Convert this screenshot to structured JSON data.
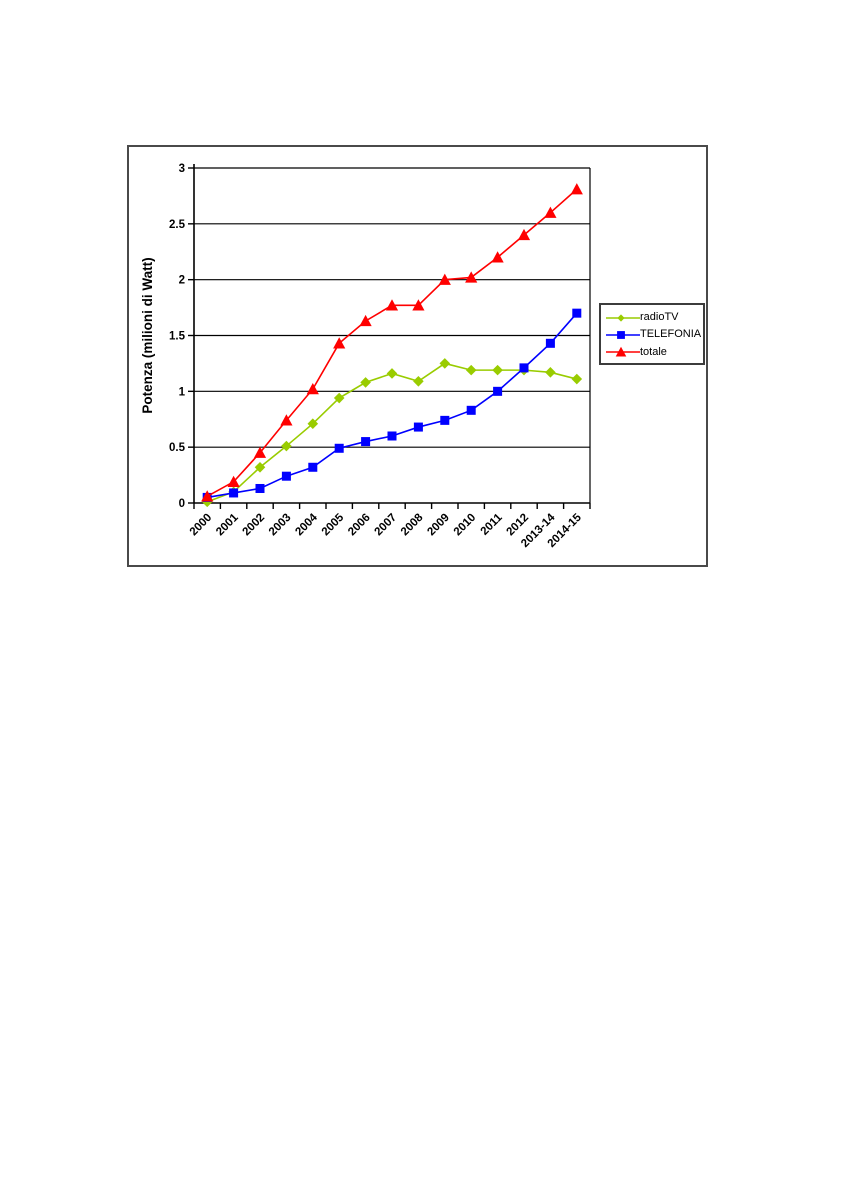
{
  "chart_data": {
    "type": "line",
    "title": "",
    "xlabel": "",
    "ylabel": "Potenza (milioni di Watt)",
    "ylim": [
      0,
      3
    ],
    "ytick_labels": [
      "0",
      "0.5",
      "1",
      "1.5",
      "2",
      "2.5",
      "3"
    ],
    "grid": "horizontal",
    "legend_position": "right",
    "categories": [
      "2000",
      "2001",
      "2002",
      "2003",
      "2004",
      "2005",
      "2006",
      "2007",
      "2008",
      "2009",
      "2010",
      "2011",
      "2012",
      "2013-14",
      "2014-15"
    ],
    "series": [
      {
        "name": "radioTV",
        "marker": "diamond",
        "color": "#99CC00",
        "values": [
          0.01,
          0.1,
          0.32,
          0.51,
          0.71,
          0.94,
          1.08,
          1.16,
          1.09,
          1.25,
          1.19,
          1.19,
          1.19,
          1.17,
          1.11
        ]
      },
      {
        "name": "TELEFONIA",
        "marker": "square",
        "color": "#0000FF",
        "values": [
          0.05,
          0.09,
          0.13,
          0.24,
          0.32,
          0.49,
          0.55,
          0.6,
          0.68,
          0.74,
          0.83,
          1.0,
          1.21,
          1.43,
          1.7
        ]
      },
      {
        "name": "totale",
        "marker": "triangle",
        "color": "#FF0000",
        "values": [
          0.06,
          0.19,
          0.45,
          0.74,
          1.02,
          1.43,
          1.63,
          1.77,
          1.77,
          2.0,
          2.02,
          2.2,
          2.4,
          2.6,
          2.81
        ]
      }
    ],
    "colors": {
      "gridline": "#000000",
      "axis": "#000000",
      "text": "#000000",
      "figure_border": "#4a4a4a",
      "legend_border": "#3c3c3c",
      "background": "#ffffff"
    }
  }
}
